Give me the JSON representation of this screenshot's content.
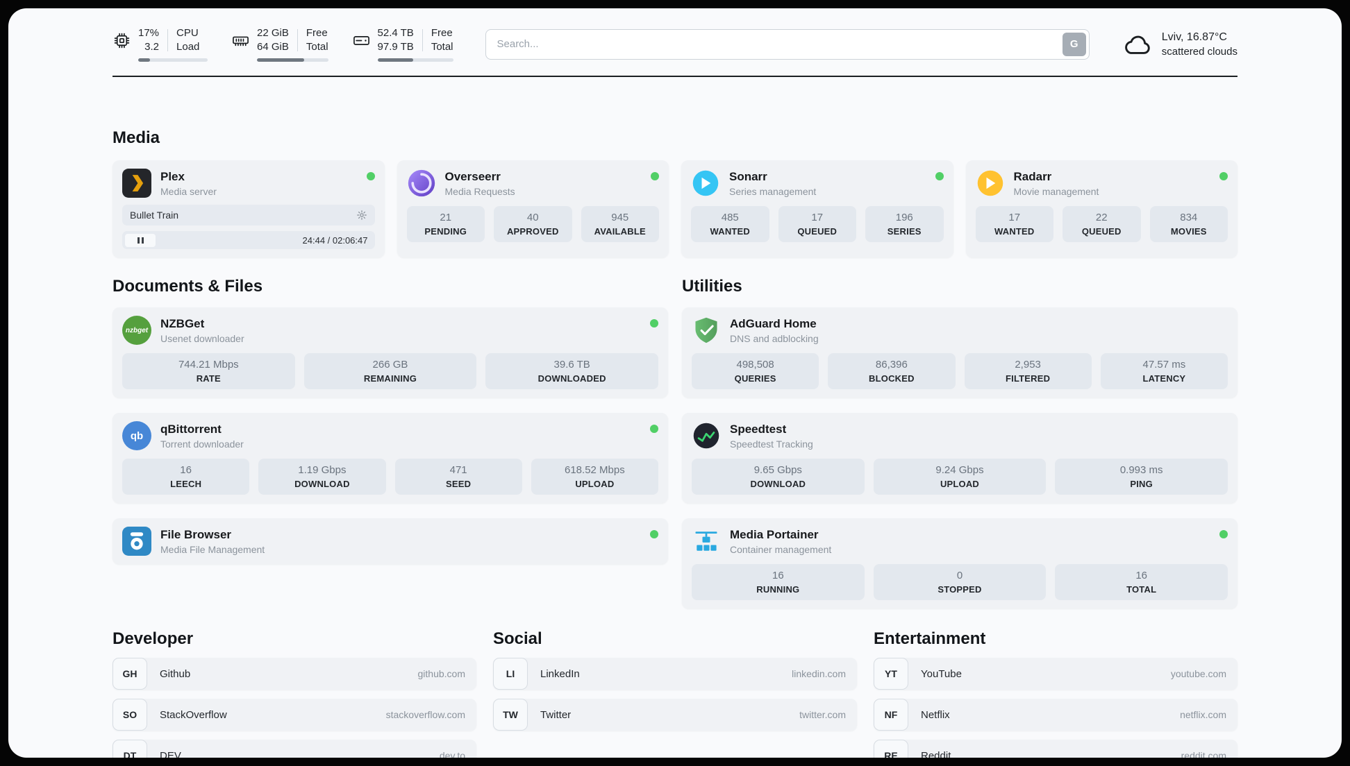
{
  "topbar": {
    "cpu": {
      "value": "17%",
      "sub": "3.2",
      "label1": "CPU",
      "label2": "Load",
      "percent": 17
    },
    "ram": {
      "value": "22 GiB",
      "sub": "64 GiB",
      "label1": "Free",
      "label2": "Total",
      "percent": 66
    },
    "disk": {
      "value": "52.4 TB",
      "sub": "97.9 TB",
      "label1": "Free",
      "label2": "Total",
      "percent": 47
    },
    "search": {
      "placeholder": "Search...",
      "button_label": "G"
    },
    "weather": {
      "location": "Lviv, 16.87°C",
      "condition": "scattered clouds"
    }
  },
  "sections": {
    "media": {
      "title": "Media"
    },
    "documents": {
      "title": "Documents & Files"
    },
    "utilities": {
      "title": "Utilities"
    },
    "developer": {
      "title": "Developer"
    },
    "social": {
      "title": "Social"
    },
    "entertainment": {
      "title": "Entertainment"
    }
  },
  "apps": {
    "plex": {
      "name": "Plex",
      "subtitle": "Media server",
      "now_playing": "Bullet Train",
      "time": "24:44 / 02:06:47"
    },
    "overseerr": {
      "name": "Overseerr",
      "subtitle": "Media Requests",
      "stats": [
        {
          "value": "21",
          "label": "PENDING"
        },
        {
          "value": "40",
          "label": "APPROVED"
        },
        {
          "value": "945",
          "label": "AVAILABLE"
        }
      ]
    },
    "sonarr": {
      "name": "Sonarr",
      "subtitle": "Series management",
      "stats": [
        {
          "value": "485",
          "label": "WANTED"
        },
        {
          "value": "17",
          "label": "QUEUED"
        },
        {
          "value": "196",
          "label": "SERIES"
        }
      ]
    },
    "radarr": {
      "name": "Radarr",
      "subtitle": "Movie management",
      "stats": [
        {
          "value": "17",
          "label": "WANTED"
        },
        {
          "value": "22",
          "label": "QUEUED"
        },
        {
          "value": "834",
          "label": "MOVIES"
        }
      ]
    },
    "nzbget": {
      "name": "NZBGet",
      "subtitle": "Usenet downloader",
      "icon_text": "nzbget",
      "stats": [
        {
          "value": "744.21 Mbps",
          "label": "RATE"
        },
        {
          "value": "266 GB",
          "label": "REMAINING"
        },
        {
          "value": "39.6 TB",
          "label": "DOWNLOADED"
        }
      ]
    },
    "qbittorrent": {
      "name": "qBittorrent",
      "subtitle": "Torrent downloader",
      "icon_text": "qb",
      "stats": [
        {
          "value": "16",
          "label": "LEECH"
        },
        {
          "value": "1.19 Gbps",
          "label": "DOWNLOAD"
        },
        {
          "value": "471",
          "label": "SEED"
        },
        {
          "value": "618.52 Mbps",
          "label": "UPLOAD"
        }
      ]
    },
    "filebrowser": {
      "name": "File Browser",
      "subtitle": "Media File Management"
    },
    "adguard": {
      "name": "AdGuard Home",
      "subtitle": "DNS and adblocking",
      "stats": [
        {
          "value": "498,508",
          "label": "QUERIES"
        },
        {
          "value": "86,396",
          "label": "BLOCKED"
        },
        {
          "value": "2,953",
          "label": "FILTERED"
        },
        {
          "value": "47.57 ms",
          "label": "LATENCY"
        }
      ]
    },
    "speedtest": {
      "name": "Speedtest",
      "subtitle": "Speedtest Tracking",
      "stats": [
        {
          "value": "9.65 Gbps",
          "label": "DOWNLOAD"
        },
        {
          "value": "9.24 Gbps",
          "label": "UPLOAD"
        },
        {
          "value": "0.993 ms",
          "label": "PING"
        }
      ]
    },
    "portainer": {
      "name": "Media Portainer",
      "subtitle": "Container management",
      "stats": [
        {
          "value": "16",
          "label": "RUNNING"
        },
        {
          "value": "0",
          "label": "STOPPED"
        },
        {
          "value": "16",
          "label": "TOTAL"
        }
      ]
    }
  },
  "links": {
    "developer": [
      {
        "abbr": "GH",
        "name": "Github",
        "domain": "github.com"
      },
      {
        "abbr": "SO",
        "name": "StackOverflow",
        "domain": "stackoverflow.com"
      },
      {
        "abbr": "DT",
        "name": "DEV",
        "domain": "dev.to"
      }
    ],
    "social": [
      {
        "abbr": "LI",
        "name": "LinkedIn",
        "domain": "linkedin.com"
      },
      {
        "abbr": "TW",
        "name": "Twitter",
        "domain": "twitter.com"
      }
    ],
    "entertainment": [
      {
        "abbr": "YT",
        "name": "YouTube",
        "domain": "youtube.com"
      },
      {
        "abbr": "NF",
        "name": "Netflix",
        "domain": "netflix.com"
      },
      {
        "abbr": "RE",
        "name": "Reddit",
        "domain": "reddit.com"
      }
    ]
  },
  "colors": {
    "status_online": "#51cf66",
    "plex": "#e5a00d",
    "overseerr": "#6f4bd8",
    "sonarr": "#35c5f4",
    "radarr": "#ffc230",
    "nzbget": "#55a03e",
    "qbittorrent": "#4787d7",
    "filebrowser": "#2f89c5",
    "adguard": "#5fae63",
    "speedtest": "#20242e",
    "portainer": "#2aa9e0"
  }
}
